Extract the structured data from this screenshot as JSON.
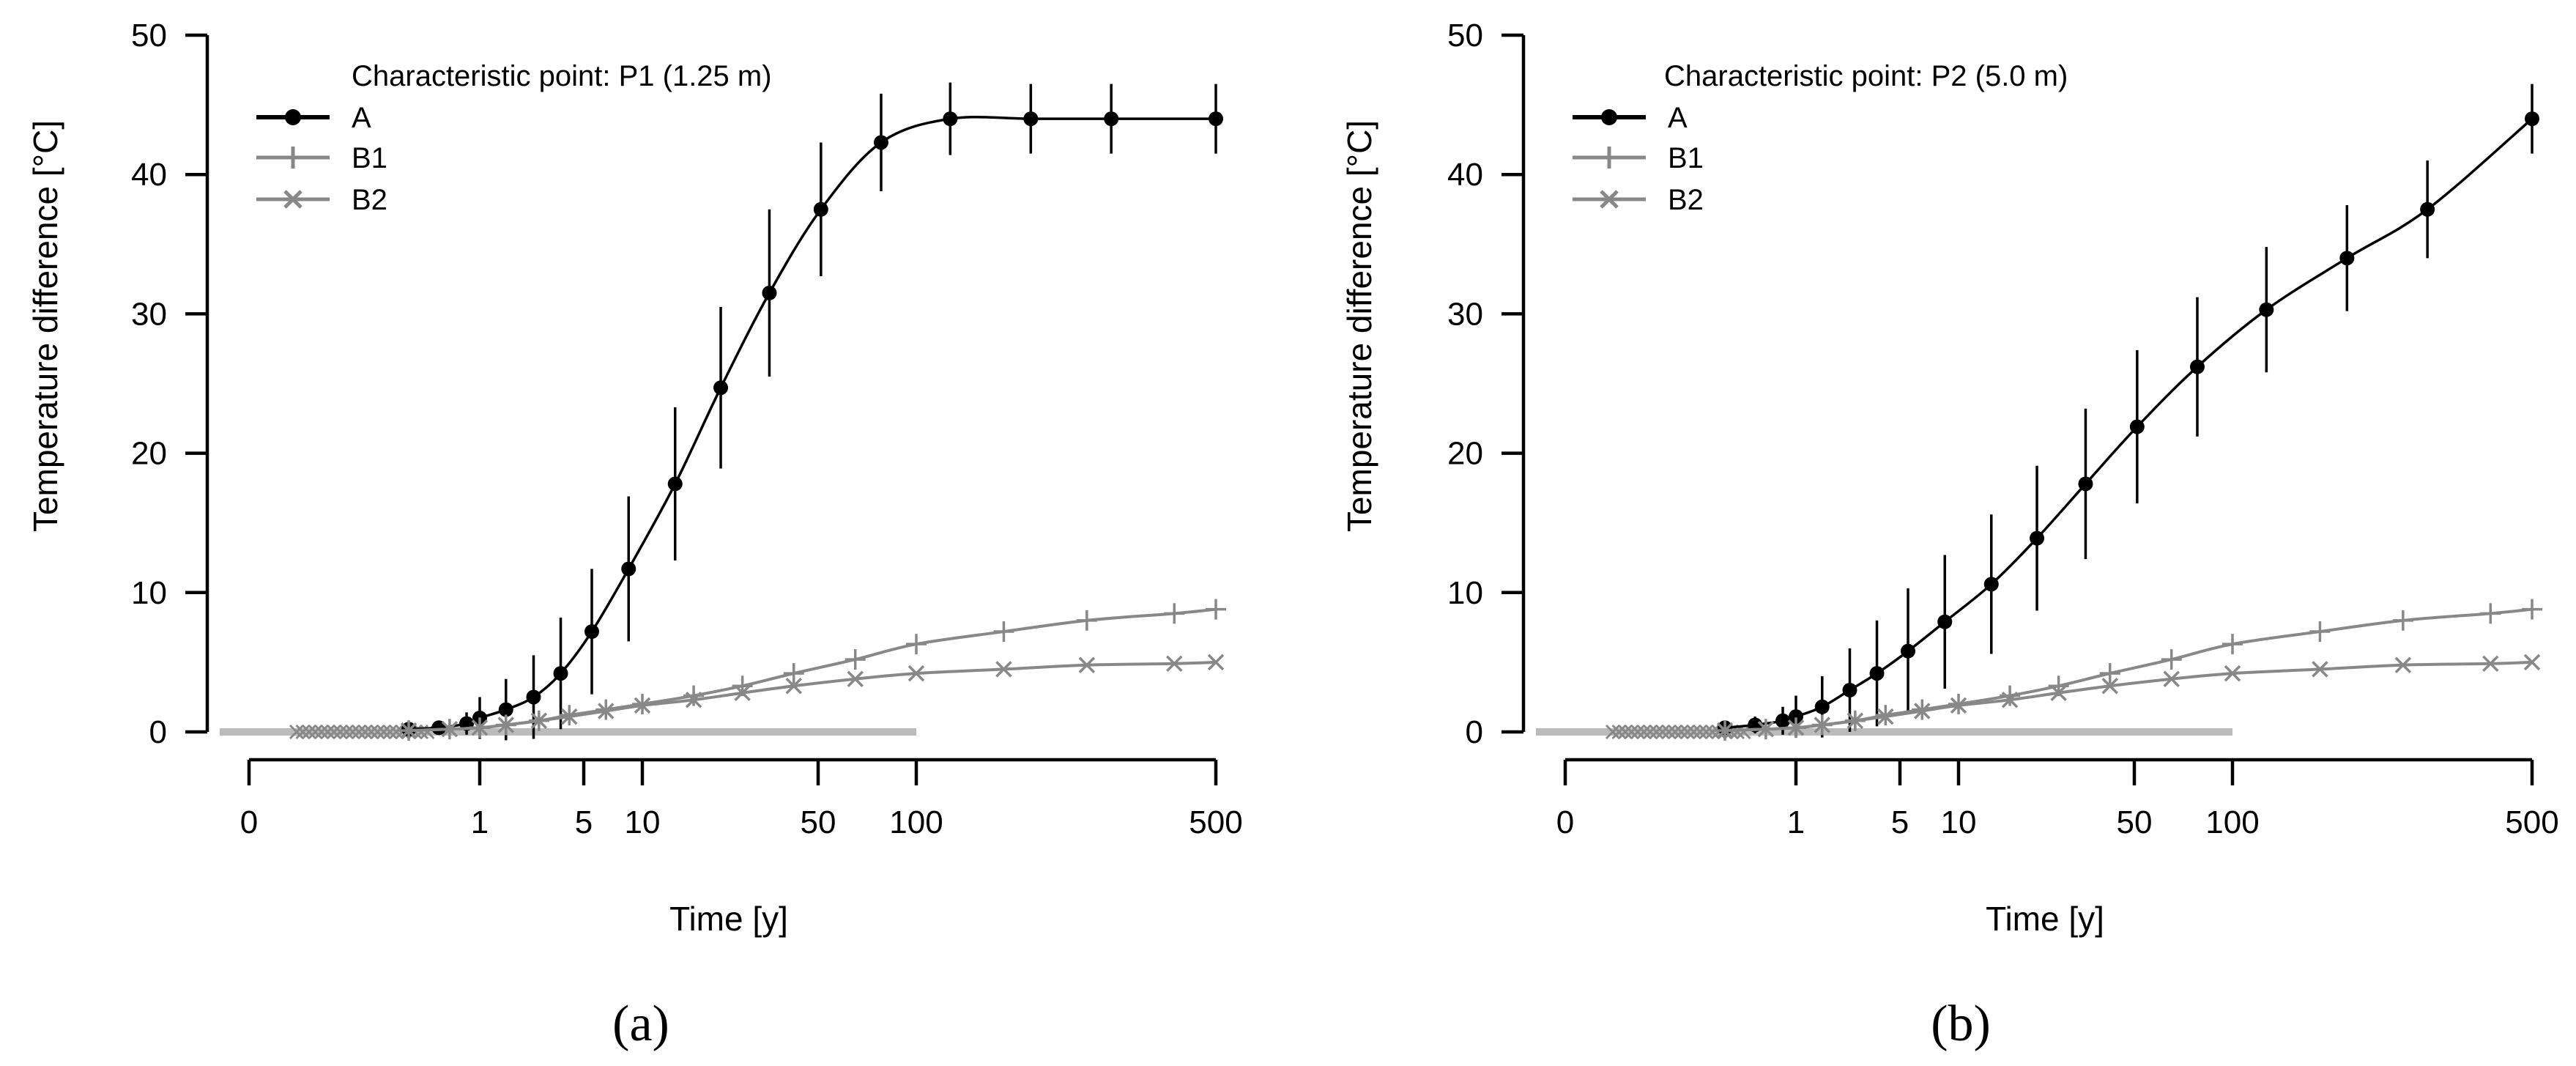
{
  "chart_data": [
    {
      "type": "line",
      "panel_label": "(a)",
      "legend_title": "Characteristic point: P1 (1.25 m)",
      "xlabel": "Time [y]",
      "ylabel": "Temperature difference [°C]",
      "x_scale": "log",
      "x_ticks": [
        0,
        1,
        5,
        10,
        50,
        100,
        500
      ],
      "x_tick_labels": [
        "0",
        "1",
        "5",
        "10",
        "50",
        "100",
        "500"
      ],
      "y_ticks": [
        0,
        10,
        20,
        30,
        40,
        50
      ],
      "y_tick_labels": [
        "0",
        "10",
        "20",
        "30",
        "40",
        "50"
      ],
      "ylim": [
        0,
        50
      ],
      "grid": false,
      "legend_position": "top-left",
      "reference_band": {
        "label": "",
        "x": [
          0.02,
          100
        ],
        "y": 0,
        "color": "#bbbbbb"
      },
      "series": [
        {
          "name": "A",
          "marker": "circle",
          "color": "#000000",
          "x": [
            0.3,
            0.5,
            0.8,
            1.0,
            1.5,
            2.3,
            3.5,
            5.5,
            8.5,
            13.5,
            20.5,
            32,
            51,
            78,
            120,
            185,
            285,
            500
          ],
          "y": [
            0.2,
            0.3,
            0.6,
            1.0,
            1.6,
            2.5,
            4.2,
            7.2,
            11.7,
            17.8,
            24.7,
            31.5,
            37.5,
            42.3,
            44.0,
            44.0,
            44.0,
            44.0
          ],
          "y_err": [
            0.3,
            0.5,
            0.8,
            1.5,
            2.2,
            3.0,
            4.0,
            4.5,
            5.2,
            5.5,
            5.8,
            6.0,
            4.8,
            3.5,
            2.6,
            2.5,
            2.5,
            2.5
          ]
        },
        {
          "name": "B1",
          "marker": "plus",
          "color": "#888888",
          "x": [
            0.3,
            0.6,
            1.0,
            1.5,
            2.5,
            4.0,
            6.5,
            10,
            16,
            25,
            40,
            65,
            100,
            160,
            250,
            400,
            500
          ],
          "y": [
            0.1,
            0.2,
            0.3,
            0.5,
            0.8,
            1.2,
            1.6,
            2.0,
            2.6,
            3.3,
            4.2,
            5.2,
            6.3,
            7.2,
            8.0,
            8.5,
            8.8
          ]
        },
        {
          "name": "B2",
          "marker": "cross",
          "color": "#888888",
          "x": [
            0.3,
            0.6,
            1.0,
            1.5,
            2.5,
            4.0,
            6.5,
            10,
            16,
            25,
            40,
            65,
            100,
            160,
            250,
            400,
            500
          ],
          "y": [
            0.1,
            0.2,
            0.3,
            0.5,
            0.8,
            1.1,
            1.5,
            1.9,
            2.3,
            2.8,
            3.3,
            3.8,
            4.2,
            4.5,
            4.8,
            4.9,
            5.0
          ]
        }
      ]
    },
    {
      "type": "line",
      "panel_label": "(b)",
      "legend_title": "Characteristic point: P2 (5.0 m)",
      "xlabel": "Time [y]",
      "ylabel": "Temperature difference [°C]",
      "x_scale": "log",
      "x_ticks": [
        0,
        1,
        5,
        10,
        50,
        100,
        500
      ],
      "x_tick_labels": [
        "0",
        "1",
        "5",
        "10",
        "50",
        "100",
        "500"
      ],
      "y_ticks": [
        0,
        10,
        20,
        30,
        40,
        50
      ],
      "y_tick_labels": [
        "0",
        "10",
        "20",
        "30",
        "40",
        "50"
      ],
      "ylim": [
        0,
        50
      ],
      "grid": false,
      "legend_position": "top-left",
      "reference_band": {
        "label": "",
        "x": [
          0.02,
          100
        ],
        "y": 0,
        "color": "#bbbbbb"
      },
      "series": [
        {
          "name": "A",
          "marker": "circle",
          "color": "#000000",
          "x": [
            0.3,
            0.5,
            0.8,
            1.0,
            1.5,
            2.3,
            3.5,
            5.5,
            8.5,
            13.5,
            20.5,
            32,
            51,
            78,
            120,
            185,
            285,
            500
          ],
          "y": [
            0.3,
            0.5,
            0.8,
            1.1,
            1.8,
            3.0,
            4.2,
            5.8,
            7.9,
            10.6,
            13.9,
            17.8,
            21.9,
            26.2,
            30.3,
            34.0,
            37.5,
            44.0
          ],
          "y_err": [
            0.4,
            0.6,
            1.0,
            1.5,
            2.2,
            3.0,
            3.8,
            4.5,
            4.8,
            5.0,
            5.2,
            5.4,
            5.5,
            5.0,
            4.5,
            3.8,
            3.5,
            2.5
          ]
        },
        {
          "name": "B1",
          "marker": "plus",
          "color": "#888888",
          "x": [
            0.3,
            0.6,
            1.0,
            1.5,
            2.5,
            4.0,
            6.5,
            10,
            16,
            25,
            40,
            65,
            100,
            160,
            250,
            400,
            500
          ],
          "y": [
            0.1,
            0.2,
            0.3,
            0.5,
            0.8,
            1.2,
            1.6,
            2.0,
            2.6,
            3.3,
            4.2,
            5.2,
            6.3,
            7.2,
            8.0,
            8.5,
            8.8
          ]
        },
        {
          "name": "B2",
          "marker": "cross",
          "color": "#888888",
          "x": [
            0.3,
            0.6,
            1.0,
            1.5,
            2.5,
            4.0,
            6.5,
            10,
            16,
            25,
            40,
            65,
            100,
            160,
            250,
            400,
            500
          ],
          "y": [
            0.1,
            0.2,
            0.3,
            0.5,
            0.8,
            1.1,
            1.5,
            1.9,
            2.3,
            2.8,
            3.3,
            3.8,
            4.2,
            4.5,
            4.8,
            4.9,
            5.0
          ]
        }
      ]
    }
  ]
}
